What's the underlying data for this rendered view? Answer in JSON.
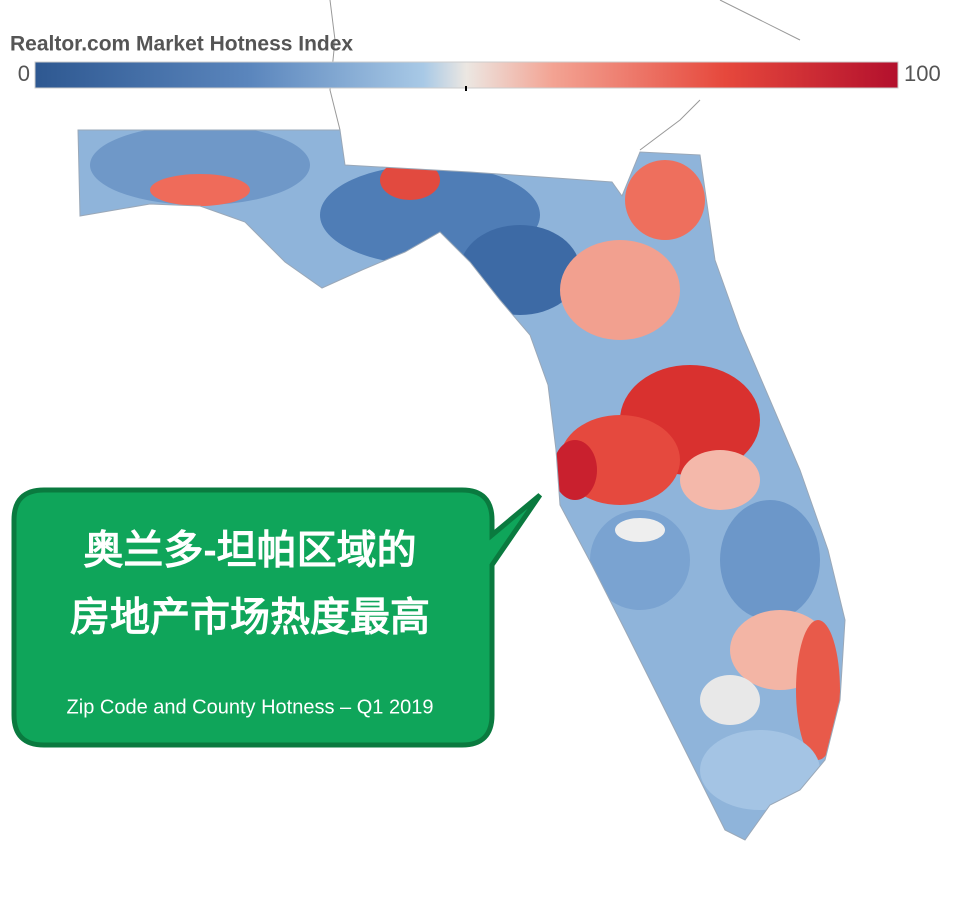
{
  "legend": {
    "title": "Realtor.com Market Hotness Index",
    "min_label": "0",
    "max_label": "100"
  },
  "callout": {
    "lines": [
      "奥兰多-坦帕区域的",
      "房地产市场热度最高"
    ],
    "subtitle": "Zip Code and County Hotness – Q1 2019"
  }
}
